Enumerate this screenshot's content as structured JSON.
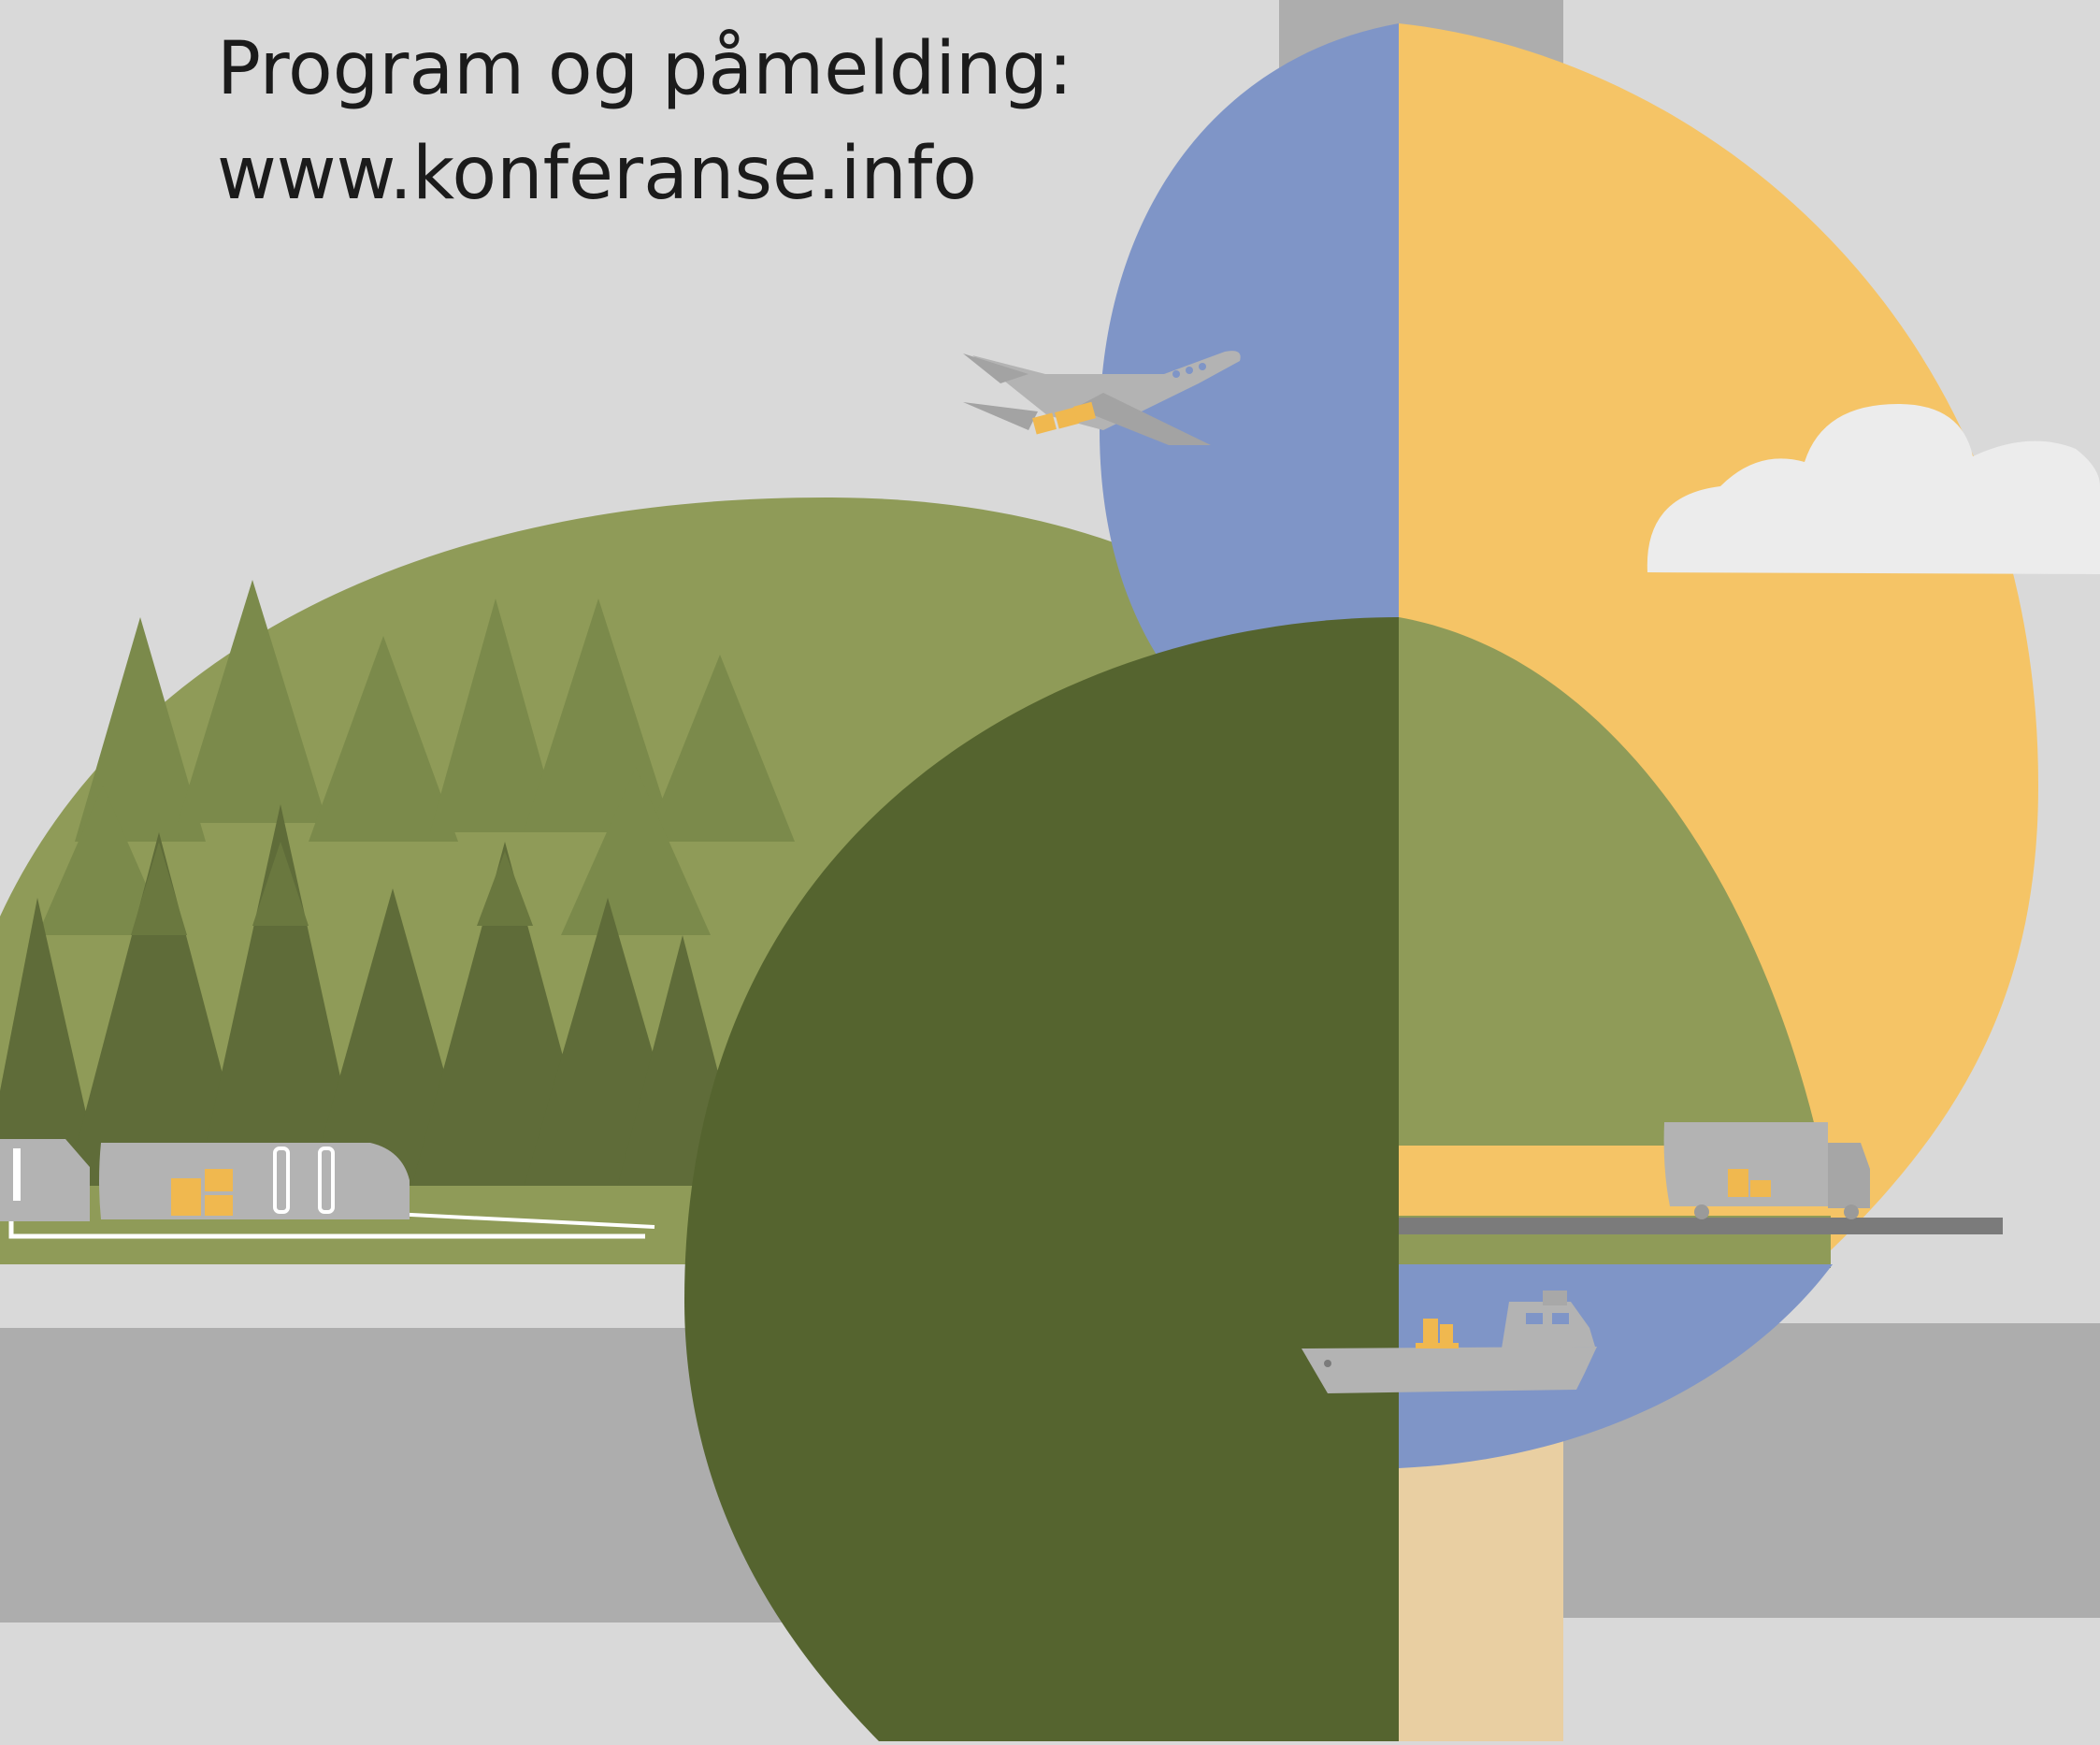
{
  "poster": {
    "program_label": "Program og påmelding:",
    "website": "www.konferanse.info"
  },
  "illustration": {
    "icons": [
      "tree-icon",
      "truck-icon",
      "airplane-icon",
      "cloud-icon",
      "ship-icon",
      "cargo-box-icon"
    ],
    "colors": {
      "background": "#d9d9d9",
      "road": "#adadad",
      "hill": "#8f9b58",
      "tree_light": "#7b8a4b",
      "tree_dark": "#5f6c39",
      "canopy_dark": "#55642f",
      "sky_blue": "#7f95c7",
      "sun_yellow": "#f5c466",
      "cloud": "#ececec",
      "trunk": "#e9cfa2",
      "vehicle": "#b3b3b3",
      "cargo": "#f0b84f"
    }
  }
}
